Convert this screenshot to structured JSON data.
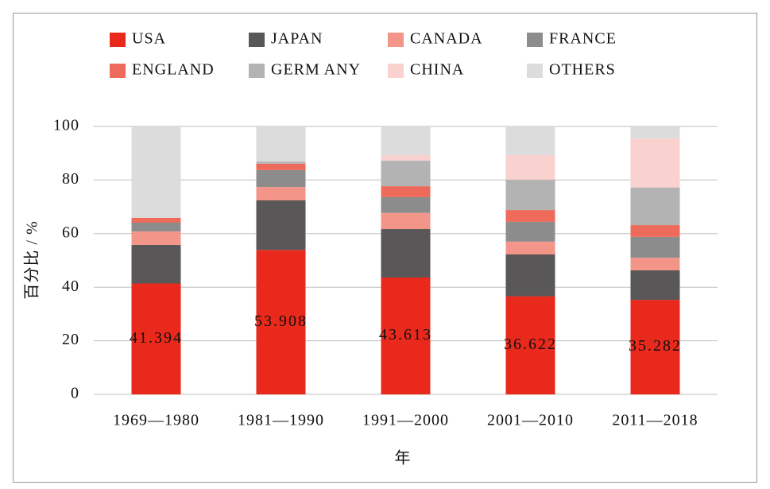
{
  "chart_data": {
    "type": "stacked_bar",
    "x_label": "年",
    "y_label": "百分比 / %",
    "categories": [
      "1969—1980",
      "1981—1990",
      "1991—2000",
      "2001—2010",
      "2011—2018"
    ],
    "series": [
      {
        "name": "USA",
        "color": "#e8291c",
        "values": [
          41.394,
          53.908,
          43.613,
          36.622,
          35.282
        ],
        "data_labels": true
      },
      {
        "name": "JAPAN",
        "color": "#595757",
        "values": [
          14.4,
          18.5,
          18.1,
          15.6,
          11.0
        ]
      },
      {
        "name": "CANADA",
        "color": "#f4958a",
        "values": [
          5.0,
          5.0,
          6.0,
          4.8,
          4.7
        ]
      },
      {
        "name": "FRANCE",
        "color": "#8c8c8c",
        "values": [
          3.3,
          6.3,
          5.9,
          7.4,
          7.8
        ]
      },
      {
        "name": "ENGLAND",
        "color": "#ee6a5a",
        "values": [
          1.8,
          2.4,
          4.1,
          4.4,
          4.4
        ]
      },
      {
        "name": "GERM ANY",
        "color": "#b3b3b3",
        "values": [
          0,
          0.8,
          9.5,
          11.3,
          14.0
        ]
      },
      {
        "name": "CHINA",
        "color": "#f9d2cf",
        "values": [
          0,
          0,
          2.1,
          9.2,
          18.3
        ]
      },
      {
        "name": "OTHERS",
        "color": "#dcdcdc",
        "values": [
          34.1,
          13.1,
          10.7,
          10.7,
          4.5
        ]
      }
    ],
    "ylim": [
      0,
      100
    ],
    "yticks": [
      0,
      20,
      40,
      60,
      80,
      100
    ],
    "grid": true,
    "legend": "top"
  }
}
